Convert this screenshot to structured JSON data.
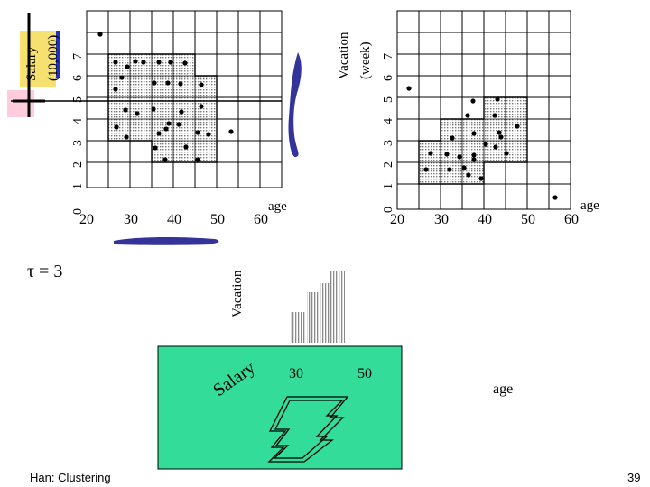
{
  "slide": {
    "footer_left": "Han: Clustering",
    "page_number": "39",
    "tau_label": "τ = 3"
  },
  "left_plot": {
    "ylabel_line1": "Salary",
    "ylabel_line2": "(10,000)",
    "xlabel": "age",
    "x_ticks": [
      "20",
      "30",
      "40",
      "50",
      "60"
    ],
    "y_ticks": [
      "0",
      "1",
      "2",
      "3",
      "4",
      "5",
      "6",
      "7"
    ]
  },
  "right_plot": {
    "ylabel_line1": "Vacation",
    "ylabel_line2": "(week)",
    "xlabel": "age",
    "x_ticks": [
      "20",
      "30",
      "40",
      "50",
      "60"
    ],
    "y_ticks": [
      "0",
      "1",
      "2",
      "3",
      "4",
      "5",
      "6",
      "7"
    ]
  },
  "bottom_3d": {
    "vacation_label": "Vacation",
    "salary_label": "Salary",
    "tick_30": "30",
    "tick_50": "50",
    "age_label": "age"
  },
  "colors": {
    "teal_plane": "#33dd99",
    "shadow_blue": "#333399",
    "legend_yellow": "#f5e070",
    "legend_blue": "#2233bb"
  }
}
